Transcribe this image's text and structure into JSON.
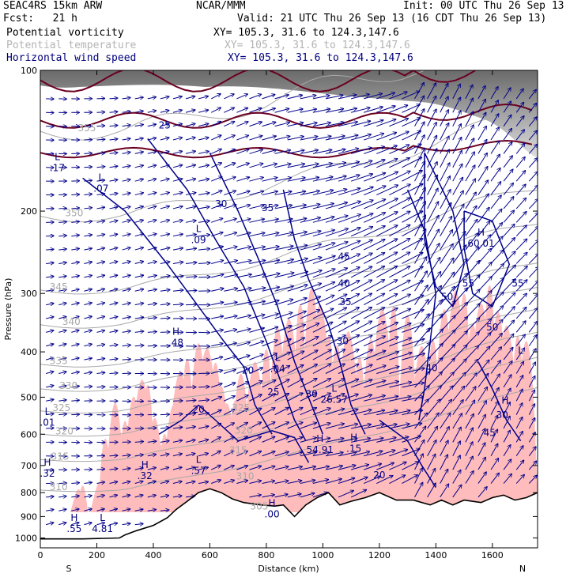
{
  "header": {
    "model": "SEAC4RS 15km ARW",
    "center": "NCAR/MMM",
    "init": "Init: 00 UTC Thu 26 Sep 13",
    "fcst": "Fcst:   21 h",
    "valid": "Valid: 21 UTC Thu 26 Sep 13 (16 CDT Thu 26 Sep 13)",
    "fields": [
      {
        "name": "Potential vorticity",
        "xy": "XY= 105.3, 31.6 to 124.3,147.6",
        "color": "#000000"
      },
      {
        "name": "Potential temperature",
        "xy": "XY= 105.3, 31.6 to 124.3,147.6",
        "color": "#b4b4b4"
      },
      {
        "name": "Horizontal wind speed",
        "xy": "XY= 105.3, 31.6 to 124.3,147.6",
        "color": "#00007f"
      }
    ]
  },
  "colors": {
    "pv_fill": "#ffbcbc",
    "theta": "#a8a8a8",
    "wind": "#00008b",
    "terrain": "#000000",
    "high_pv": "#6b0020"
  },
  "chart_data": {
    "type": "cross-section",
    "xlabel": "Distance (km)",
    "ylabel": "Pressure (hPa)",
    "xlim": [
      0,
      1760
    ],
    "ylim": [
      1050,
      100
    ],
    "y_scale": "log",
    "x_ticks": [
      0,
      200,
      400,
      600,
      800,
      1000,
      1200,
      1400,
      1600
    ],
    "y_ticks": [
      100,
      200,
      300,
      400,
      500,
      600,
      700,
      800,
      900,
      1000
    ],
    "endpoint_labels": {
      "left": "S",
      "right": "N"
    },
    "terrain_pressure": {
      "x": [
        0,
        150,
        280,
        300,
        340,
        400,
        450,
        480,
        520,
        560,
        600,
        640,
        680,
        720,
        780,
        830,
        860,
        900,
        940,
        980,
        1020,
        1060,
        1100,
        1150,
        1200,
        1260,
        1320,
        1380,
        1420,
        1460,
        1500,
        1560,
        1600,
        1640,
        1680,
        1720,
        1760
      ],
      "p": [
        1005,
        1005,
        1000,
        985,
        965,
        940,
        905,
        870,
        835,
        800,
        785,
        800,
        825,
        840,
        850,
        855,
        850,
        900,
        850,
        820,
        800,
        850,
        835,
        820,
        800,
        830,
        830,
        850,
        830,
        850,
        830,
        840,
        820,
        810,
        830,
        820,
        800
      ]
    },
    "theta_contours": [
      {
        "label": "310",
        "x": 65,
        "p": 790
      },
      {
        "label": "315",
        "x": 70,
        "p": 680
      },
      {
        "label": "320",
        "x": 85,
        "p": 600
      },
      {
        "label": "325",
        "x": 75,
        "p": 535
      },
      {
        "label": "330",
        "x": 100,
        "p": 480
      },
      {
        "label": "335",
        "x": 65,
        "p": 425
      },
      {
        "label": "340",
        "x": 110,
        "p": 350
      },
      {
        "label": "345",
        "x": 65,
        "p": 295
      },
      {
        "label": "350",
        "x": 120,
        "p": 205
      },
      {
        "label": "355",
        "x": 165,
        "p": 135
      },
      {
        "label": "325",
        "x": 710,
        "p": 535
      },
      {
        "label": "320",
        "x": 720,
        "p": 598
      },
      {
        "label": "315",
        "x": 700,
        "p": 660
      },
      {
        "label": "310",
        "x": 725,
        "p": 750
      },
      {
        "label": "305",
        "x": 775,
        "p": 870
      }
    ],
    "wind_contours": [
      {
        "label": "20",
        "x": 560,
        "p": 540
      },
      {
        "label": "20",
        "x": 735,
        "p": 445
      },
      {
        "label": "25",
        "x": 825,
        "p": 495
      },
      {
        "label": "30",
        "x": 960,
        "p": 500
      },
      {
        "label": "30",
        "x": 1070,
        "p": 385
      },
      {
        "label": "35",
        "x": 805,
        "p": 200
      },
      {
        "label": "30",
        "x": 640,
        "p": 196
      },
      {
        "label": "35",
        "x": 1080,
        "p": 318
      },
      {
        "label": "40",
        "x": 1075,
        "p": 290
      },
      {
        "label": "45",
        "x": 1075,
        "p": 254
      },
      {
        "label": "40",
        "x": 1385,
        "p": 440
      },
      {
        "label": "50",
        "x": 1440,
        "p": 310
      },
      {
        "label": "55",
        "x": 1515,
        "p": 290
      },
      {
        "label": "55",
        "x": 1690,
        "p": 290
      },
      {
        "label": "50",
        "x": 1600,
        "p": 360
      },
      {
        "label": "30",
        "x": 1635,
        "p": 555
      },
      {
        "label": "45",
        "x": 1590,
        "p": 605
      },
      {
        "label": "20",
        "x": 1200,
        "p": 745
      },
      {
        "label": "25",
        "x": 440,
        "p": 133
      }
    ],
    "hl_markers": [
      {
        "type": "L",
        "value": ".17",
        "x": 60,
        "p": 160
      },
      {
        "type": "L",
        "value": ".07",
        "x": 215,
        "p": 177
      },
      {
        "type": "L",
        "value": ".09",
        "x": 560,
        "p": 228
      },
      {
        "type": "H",
        "value": ".48",
        "x": 480,
        "p": 378
      },
      {
        "type": "L",
        "value": ".04",
        "x": 840,
        "p": 430
      },
      {
        "type": "L",
        "value": "26.57",
        "x": 1040,
        "p": 500
      },
      {
        "type": "L",
        "value": ".01",
        "x": 25,
        "p": 560
      },
      {
        "type": "H",
        "value": "54.91",
        "x": 990,
        "p": 640
      },
      {
        "type": "H",
        "value": ".15",
        "x": 1110,
        "p": 637
      },
      {
        "type": "H",
        "value": ".32",
        "x": 25,
        "p": 720
      },
      {
        "type": "H",
        "value": ".32",
        "x": 370,
        "p": 728
      },
      {
        "type": "L",
        "value": ".57",
        "x": 560,
        "p": 710
      },
      {
        "type": "H",
        "value": ".00",
        "x": 820,
        "p": 880
      },
      {
        "type": "H",
        "value": ".55",
        "x": 120,
        "p": 945
      },
      {
        "type": "L",
        "value": "4.81",
        "x": 220,
        "p": 945
      },
      {
        "type": "H",
        "value": "60.01",
        "x": 1560,
        "p": 232
      },
      {
        "type": "H",
        "value": "",
        "x": 1645,
        "p": 530
      },
      {
        "type": "L",
        "value": "",
        "x": 1700,
        "p": 415
      }
    ]
  }
}
